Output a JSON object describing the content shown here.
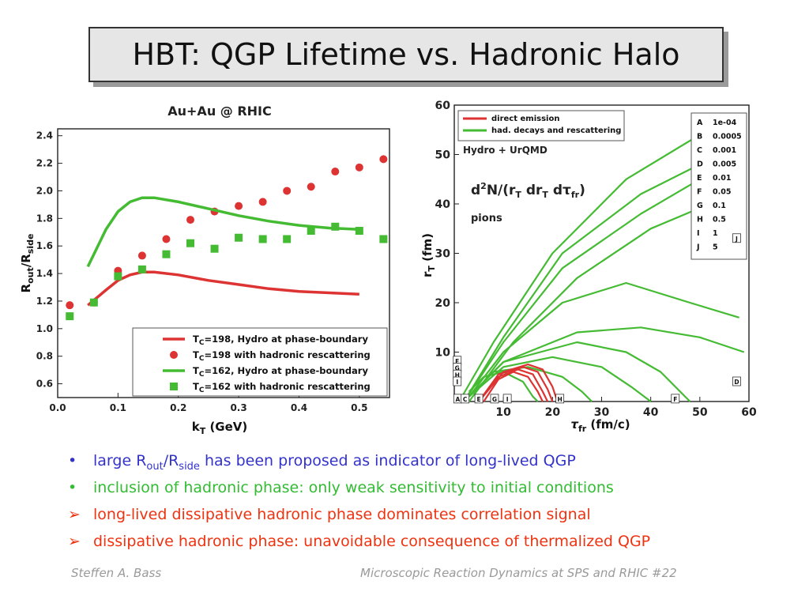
{
  "slide": {
    "title": "HBT: QGP Lifetime vs. Hadronic Halo",
    "bullets": [
      {
        "pre": "large R",
        "sub1": "out",
        "mid": "/R",
        "sub2": "side",
        "post": " has been proposed as indicator of long-lived QGP",
        "marker": "•",
        "color": "#3333cc"
      },
      {
        "text": "inclusion of hadronic phase: only weak sensitivity to initial conditions",
        "marker": "•",
        "color": "#33bb33"
      },
      {
        "text": "long-lived dissipative hadronic phase dominates correlation signal",
        "marker": "➢",
        "color": "#ee3311"
      },
      {
        "text": "dissipative hadronic phase: unavoidable consequence of thermalized QGP",
        "marker": "➢",
        "color": "#ee3311"
      }
    ],
    "footer_left": "Steffen A. Bass",
    "footer_right": "Microscopic Reaction Dynamics at SPS and  RHIC  #22"
  },
  "chart_data": [
    {
      "type": "scatter",
      "title": "Au+Au @ RHIC",
      "xlabel": "kT (GeV)",
      "ylabel": "Rout/Rside",
      "xlim": [
        0,
        0.55
      ],
      "ylim": [
        0.5,
        2.45
      ],
      "xticks": [
        "0.0",
        "0.1",
        "0.2",
        "0.3",
        "0.4",
        "0.5"
      ],
      "yticks": [
        "0.6",
        "0.8",
        "1.0",
        "1.2",
        "1.4",
        "1.6",
        "1.8",
        "2.0",
        "2.2",
        "2.4"
      ],
      "legend_position": "bottom-right",
      "series": [
        {
          "name": "TC=198, Hydro at phase-boundary",
          "kind": "line",
          "color": "#dd3333",
          "x": [
            0.05,
            0.08,
            0.1,
            0.12,
            0.14,
            0.16,
            0.2,
            0.25,
            0.3,
            0.35,
            0.4,
            0.45,
            0.5
          ],
          "y": [
            1.17,
            1.28,
            1.35,
            1.39,
            1.41,
            1.41,
            1.39,
            1.35,
            1.32,
            1.29,
            1.27,
            1.26,
            1.25
          ]
        },
        {
          "name": "TC=198 with hadronic rescattering",
          "kind": "points",
          "marker": "circle",
          "color": "#dd3333",
          "x": [
            0.02,
            0.06,
            0.1,
            0.14,
            0.18,
            0.22,
            0.26,
            0.3,
            0.34,
            0.38,
            0.42,
            0.46,
            0.5,
            0.54
          ],
          "y": [
            1.17,
            1.19,
            1.42,
            1.53,
            1.65,
            1.79,
            1.85,
            1.89,
            1.92,
            2.0,
            2.03,
            2.14,
            2.17,
            2.23
          ]
        },
        {
          "name": "TC=162, Hydro at phase-boundary",
          "kind": "line",
          "color": "#44bb33",
          "x": [
            0.05,
            0.08,
            0.1,
            0.12,
            0.14,
            0.16,
            0.2,
            0.25,
            0.3,
            0.35,
            0.4,
            0.45,
            0.5
          ],
          "y": [
            1.45,
            1.72,
            1.85,
            1.92,
            1.95,
            1.95,
            1.92,
            1.87,
            1.82,
            1.78,
            1.75,
            1.73,
            1.72
          ]
        },
        {
          "name": "TC=162 with hadronic rescattering",
          "kind": "points",
          "marker": "square",
          "color": "#44bb33",
          "x": [
            0.02,
            0.06,
            0.1,
            0.14,
            0.18,
            0.22,
            0.26,
            0.3,
            0.34,
            0.38,
            0.42,
            0.46,
            0.5,
            0.54
          ],
          "y": [
            1.09,
            1.19,
            1.38,
            1.43,
            1.54,
            1.62,
            1.58,
            1.66,
            1.65,
            1.65,
            1.71,
            1.74,
            1.71,
            1.65
          ]
        }
      ]
    },
    {
      "type": "line",
      "title": "Hydro + UrQMD",
      "subtitle": "d2N/(rT drT dτfr)",
      "annotation": "pions",
      "xlabel": "τfr (fm/c)",
      "ylabel": "rT (fm)",
      "xlim": [
        0,
        60
      ],
      "ylim": [
        0,
        60
      ],
      "xticks": [
        "10",
        "20",
        "30",
        "40",
        "50",
        "60"
      ],
      "yticks": [
        "10",
        "20",
        "30",
        "40",
        "50",
        "60"
      ],
      "legend": [
        {
          "name": "direct emission",
          "color": "#dd3333"
        },
        {
          "name": "had. decays and rescattering",
          "color": "#44bb33"
        }
      ],
      "contour_levels": [
        {
          "label": "A",
          "value": "1e-04"
        },
        {
          "label": "B",
          "value": "0.0005"
        },
        {
          "label": "C",
          "value": "0.001"
        },
        {
          "label": "D",
          "value": "0.005"
        },
        {
          "label": "E",
          "value": "0.01"
        },
        {
          "label": "F",
          "value": "0.05"
        },
        {
          "label": "G",
          "value": "0.1"
        },
        {
          "label": "H",
          "value": "0.5"
        },
        {
          "label": "I",
          "value": "1"
        },
        {
          "label": "J",
          "value": "5"
        }
      ],
      "series": [
        {
          "name": "had. decays and rescattering",
          "color": "#44bb33",
          "x": [
            1,
            8,
            20,
            35,
            50,
            56
          ],
          "y": [
            0,
            12,
            30,
            45,
            54,
            58
          ]
        },
        {
          "name": "had. decays and rescattering",
          "color": "#44bb33",
          "x": [
            2,
            10,
            22,
            38,
            50,
            58
          ],
          "y": [
            0,
            13,
            30,
            42,
            48,
            50
          ]
        },
        {
          "name": "had. decays and rescattering",
          "color": "#44bb33",
          "x": [
            2,
            10,
            22,
            38,
            50,
            58
          ],
          "y": [
            0,
            12,
            27,
            38,
            45,
            49
          ]
        },
        {
          "name": "had. decays and rescattering",
          "color": "#44bb33",
          "x": [
            3,
            12,
            25,
            40,
            52,
            58
          ],
          "y": [
            0,
            12,
            25,
            35,
            40,
            44
          ]
        },
        {
          "name": "had. decays and rescattering",
          "color": "#44bb33",
          "x": [
            3,
            10,
            22,
            35,
            48,
            58
          ],
          "y": [
            1,
            10,
            20,
            24,
            20,
            17
          ]
        },
        {
          "name": "had. decays and rescattering",
          "color": "#44bb33",
          "x": [
            3,
            10,
            25,
            38,
            50,
            59
          ],
          "y": [
            1,
            8,
            14,
            15,
            13,
            10
          ]
        },
        {
          "name": "had. decays and rescattering",
          "color": "#44bb33",
          "x": [
            3,
            10,
            25,
            35,
            42,
            48
          ],
          "y": [
            1,
            8,
            12,
            10,
            6,
            0
          ]
        },
        {
          "name": "had. decays and rescattering",
          "color": "#44bb33",
          "x": [
            3,
            10,
            20,
            30,
            36,
            40
          ],
          "y": [
            1,
            7,
            9,
            7,
            3,
            0
          ]
        },
        {
          "name": "had. decays and rescattering",
          "color": "#44bb33",
          "x": [
            3,
            8,
            15,
            22,
            26,
            28
          ],
          "y": [
            1,
            6,
            7,
            5,
            2,
            0
          ]
        },
        {
          "name": "had. decays and rescattering",
          "color": "#44bb33",
          "x": [
            3,
            6,
            10,
            14,
            16,
            17
          ],
          "y": [
            2,
            5,
            6,
            4,
            1,
            0
          ]
        },
        {
          "name": "direct emission",
          "color": "#dd3333",
          "x": [
            5,
            10,
            15,
            18,
            20,
            21
          ],
          "y": [
            0,
            6,
            7.5,
            6.5,
            3,
            0
          ]
        },
        {
          "name": "direct emission",
          "color": "#dd3333",
          "x": [
            5,
            9,
            14,
            17,
            19,
            20
          ],
          "y": [
            0,
            5.5,
            7,
            6,
            2.5,
            0
          ]
        },
        {
          "name": "direct emission",
          "color": "#dd3333",
          "x": [
            5,
            9,
            13,
            16,
            18,
            19
          ],
          "y": [
            0,
            5,
            6.5,
            5.5,
            2,
            0
          ]
        },
        {
          "name": "direct emission",
          "color": "#dd3333",
          "x": [
            6,
            9,
            12,
            15,
            17,
            18
          ],
          "y": [
            0,
            4.5,
            6,
            5,
            2,
            0
          ]
        }
      ]
    }
  ]
}
